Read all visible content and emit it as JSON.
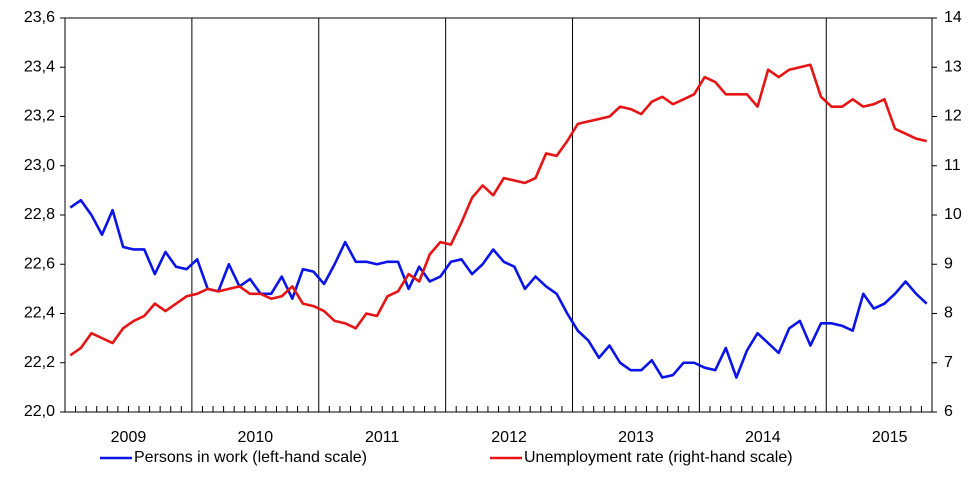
{
  "chart_data": {
    "type": "line",
    "categories": [
      null,
      null,
      null,
      null,
      null,
      null,
      "2009",
      null,
      null,
      null,
      null,
      null,
      null,
      null,
      null,
      null,
      null,
      null,
      "2010",
      null,
      null,
      null,
      null,
      null,
      null,
      null,
      null,
      null,
      null,
      null,
      "2011",
      null,
      null,
      null,
      null,
      null,
      null,
      null,
      null,
      null,
      null,
      null,
      "2012",
      null,
      null,
      null,
      null,
      null,
      null,
      null,
      null,
      null,
      null,
      null,
      "2013",
      null,
      null,
      null,
      null,
      null,
      null,
      null,
      null,
      null,
      null,
      null,
      "2014",
      null,
      null,
      null,
      null,
      null,
      null,
      null,
      null,
      null,
      null,
      null,
      "2015",
      null,
      null,
      null
    ],
    "series": [
      {
        "name": "Persons in work (left-hand scale)",
        "color": "#0a14e6",
        "axis": "y",
        "values": [
          22.83,
          22.86,
          22.8,
          22.72,
          22.82,
          22.67,
          22.66,
          22.66,
          22.56,
          22.65,
          22.59,
          22.58,
          22.62,
          22.5,
          22.49,
          22.6,
          22.51,
          22.54,
          22.48,
          22.48,
          22.55,
          22.46,
          22.58,
          22.57,
          22.52,
          22.6,
          22.69,
          22.61,
          22.61,
          22.6,
          22.61,
          22.61,
          22.5,
          22.59,
          22.53,
          22.55,
          22.61,
          22.62,
          22.56,
          22.6,
          22.66,
          22.61,
          22.59,
          22.5,
          22.55,
          22.51,
          22.48,
          22.4,
          22.33,
          22.29,
          22.22,
          22.27,
          22.2,
          22.17,
          22.17,
          22.21,
          22.14,
          22.15,
          22.2,
          22.2,
          22.18,
          22.17,
          22.26,
          22.14,
          22.25,
          22.32,
          22.28,
          22.24,
          22.34,
          22.37,
          22.27,
          22.36,
          22.36,
          22.35,
          22.33,
          22.48,
          22.42,
          22.44,
          22.48,
          22.53,
          22.48,
          22.44
        ]
      },
      {
        "name": "Unemployment rate (right-hand scale)",
        "color": "#e61414",
        "axis": "y2",
        "values": [
          7.15,
          7.3,
          7.6,
          7.5,
          7.4,
          7.7,
          7.85,
          7.95,
          8.2,
          8.05,
          8.2,
          8.35,
          8.4,
          8.5,
          8.45,
          8.5,
          8.55,
          8.4,
          8.4,
          8.3,
          8.35,
          8.55,
          8.2,
          8.15,
          8.05,
          7.85,
          7.8,
          7.7,
          8.0,
          7.95,
          8.35,
          8.45,
          8.8,
          8.65,
          9.2,
          9.45,
          9.4,
          9.85,
          10.35,
          10.6,
          10.4,
          10.75,
          10.7,
          10.65,
          10.75,
          11.25,
          11.2,
          11.5,
          11.85,
          11.9,
          11.95,
          12.0,
          12.2,
          12.15,
          12.05,
          12.3,
          12.4,
          12.25,
          12.35,
          12.45,
          12.8,
          12.7,
          12.45,
          12.45,
          12.45,
          12.2,
          12.95,
          12.8,
          12.95,
          13.0,
          13.05,
          12.4,
          12.2,
          12.2,
          12.35,
          12.2,
          12.25,
          12.35,
          11.75,
          11.65,
          11.55,
          11.5
        ]
      }
    ],
    "ylim": [
      22.0,
      23.6
    ],
    "yticks": [
      {
        "value": 22.0,
        "label": "22,0"
      },
      {
        "value": 22.2,
        "label": "22,2"
      },
      {
        "value": 22.4,
        "label": "22,4"
      },
      {
        "value": 22.6,
        "label": "22,6"
      },
      {
        "value": 22.8,
        "label": "22,8"
      },
      {
        "value": 23.0,
        "label": "23,0"
      },
      {
        "value": 23.2,
        "label": "23,2"
      },
      {
        "value": 23.4,
        "label": "23,4"
      },
      {
        "value": 23.6,
        "label": "23,6"
      }
    ],
    "y2lim": [
      6,
      14
    ],
    "y2ticks": [
      6,
      7,
      8,
      9,
      10,
      11,
      12,
      13,
      14
    ],
    "grid": false,
    "legend": "bottom"
  }
}
